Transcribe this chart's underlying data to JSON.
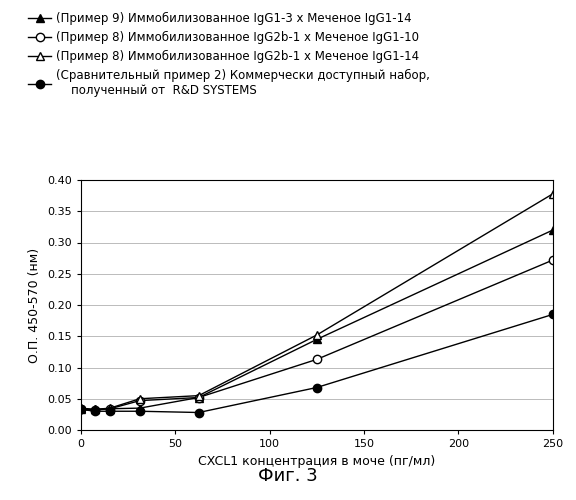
{
  "series": [
    {
      "label": "(Пример 9) Иммобилизованное IgG1-3 х Меченое IgG1-14",
      "x": [
        0,
        7.8,
        15.6,
        31.3,
        62.5,
        125,
        250
      ],
      "y": [
        0.035,
        0.033,
        0.034,
        0.035,
        0.052,
        0.145,
        0.32
      ],
      "marker": "^",
      "marker_filled": true,
      "color": "#000000",
      "linestyle": "-"
    },
    {
      "label": "(Пример 8) Иммобилизованное IgG2b-1 х Меченое IgG1-10",
      "x": [
        0,
        7.8,
        15.6,
        31.3,
        62.5,
        125,
        250
      ],
      "y": [
        0.033,
        0.032,
        0.034,
        0.047,
        0.052,
        0.113,
        0.272
      ],
      "marker": "o",
      "marker_filled": false,
      "color": "#000000",
      "linestyle": "-"
    },
    {
      "label": "(Пример 8) Иммобилизованное IgG2b-1 х Меченое IgG1-14",
      "x": [
        0,
        7.8,
        15.6,
        31.3,
        62.5,
        125,
        250
      ],
      "y": [
        0.033,
        0.033,
        0.035,
        0.05,
        0.055,
        0.152,
        0.378
      ],
      "marker": "^",
      "marker_filled": false,
      "color": "#000000",
      "linestyle": "-"
    },
    {
      "label": "(Сравнительный пример 2) Коммерчески доступный набор,\n    полученный от  R&D SYSTEMS",
      "x": [
        0,
        7.8,
        15.6,
        31.3,
        62.5,
        125,
        250
      ],
      "y": [
        0.033,
        0.03,
        0.03,
        0.03,
        0.028,
        0.068,
        0.185
      ],
      "marker": "o",
      "marker_filled": true,
      "color": "#000000",
      "linestyle": "-"
    }
  ],
  "xlabel": "CXCL1 концентрация в моче (пг/мл)",
  "ylabel": "О.П. 450-570 (нм)",
  "figcaption": "Фиг. 3",
  "xlim": [
    0,
    250
  ],
  "ylim": [
    0.0,
    0.4
  ],
  "yticks": [
    0.0,
    0.05,
    0.1,
    0.15,
    0.2,
    0.25,
    0.3,
    0.35,
    0.4
  ],
  "xticks": [
    0,
    50,
    100,
    150,
    200,
    250
  ],
  "background_color": "#ffffff",
  "grid_color": "#bbbbbb",
  "markersize": 6,
  "linewidth": 1.0
}
